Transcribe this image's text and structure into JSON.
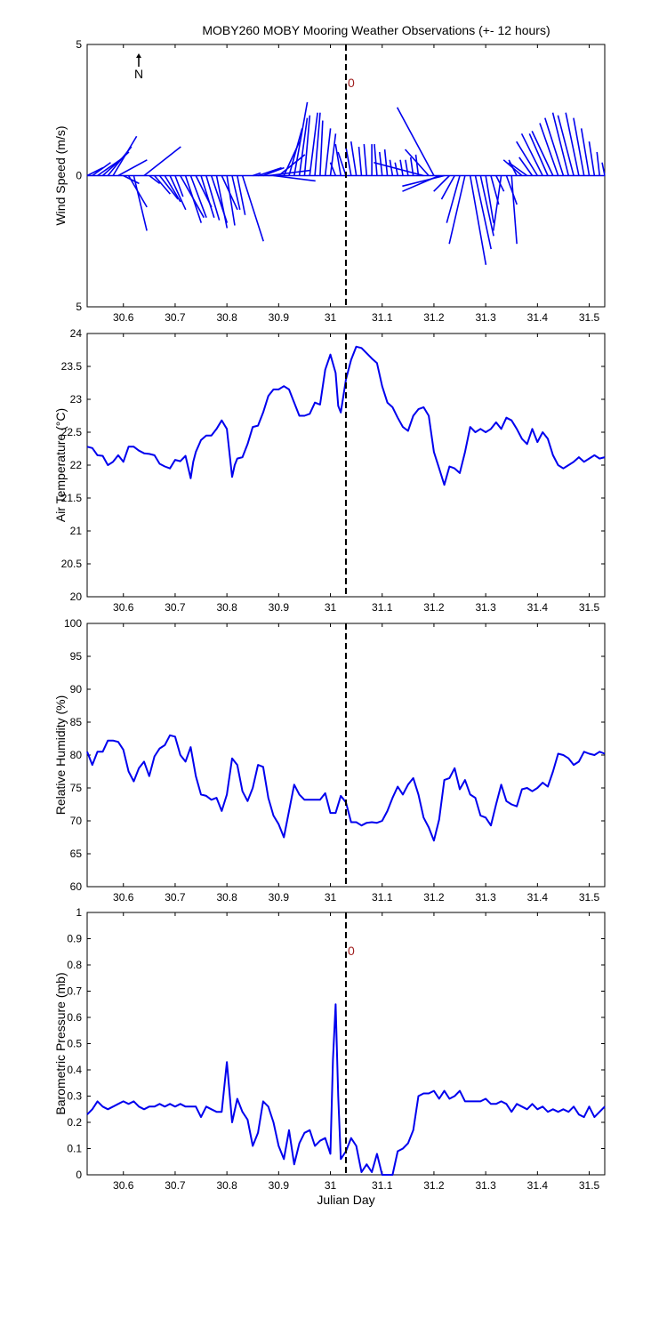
{
  "chart_data": [
    {
      "type": "wind-stick",
      "title": "MOBY260 MOBY Mooring Weather Observations (+- 12 hours)",
      "ylabel": "Wind Speed (m/s)",
      "xlabel": "",
      "north_label": "N",
      "marker_label": "0",
      "xlim": [
        30.53,
        31.53
      ],
      "ylim": [
        -5,
        5
      ],
      "xticks": [
        "30.6",
        "30.7",
        "30.8",
        "30.9",
        "31",
        "31.1",
        "31.2",
        "31.3",
        "31.4",
        "31.5"
      ],
      "yticks": [
        "5",
        "0",
        "5"
      ],
      "now_line_x": 31.03,
      "color": "#0000ee",
      "sticks": [
        {
          "x": 30.53,
          "u": 0.6,
          "v": 0.3
        },
        {
          "x": 30.54,
          "u": 0.7,
          "v": 0.5
        },
        {
          "x": 30.55,
          "u": 1.0,
          "v": 0.7
        },
        {
          "x": 30.56,
          "u": 1.0,
          "v": 0.9
        },
        {
          "x": 30.57,
          "u": 0.9,
          "v": 1.1
        },
        {
          "x": 30.58,
          "u": 0.9,
          "v": 1.5
        },
        {
          "x": 30.59,
          "u": 1.1,
          "v": 0.6
        },
        {
          "x": 30.6,
          "u": 0.6,
          "v": -0.3
        },
        {
          "x": 30.61,
          "u": 0.7,
          "v": -1.2
        },
        {
          "x": 30.62,
          "u": 0.5,
          "v": -2.1
        },
        {
          "x": 30.64,
          "u": 1.4,
          "v": 1.1
        },
        {
          "x": 30.65,
          "u": 0.4,
          "v": -0.3
        },
        {
          "x": 30.66,
          "u": 0.6,
          "v": -0.7
        },
        {
          "x": 30.67,
          "u": 0.7,
          "v": -0.9
        },
        {
          "x": 30.68,
          "u": 0.6,
          "v": -1.0
        },
        {
          "x": 30.69,
          "u": 0.6,
          "v": -1.3
        },
        {
          "x": 30.7,
          "u": 0.3,
          "v": -0.8
        },
        {
          "x": 30.71,
          "u": 0.9,
          "v": -1.6
        },
        {
          "x": 30.72,
          "u": 0.6,
          "v": -1.8
        },
        {
          "x": 30.73,
          "u": 0.6,
          "v": -1.6
        },
        {
          "x": 30.74,
          "u": 0.6,
          "v": -1.2
        },
        {
          "x": 30.75,
          "u": 0.5,
          "v": -1.6
        },
        {
          "x": 30.76,
          "u": 0.5,
          "v": -1.7
        },
        {
          "x": 30.77,
          "u": 0.6,
          "v": -1.8
        },
        {
          "x": 30.78,
          "u": 0.4,
          "v": -2.0
        },
        {
          "x": 30.79,
          "u": 0.6,
          "v": -1.3
        },
        {
          "x": 30.8,
          "u": 0.3,
          "v": -1.9
        },
        {
          "x": 30.81,
          "u": 0.3,
          "v": -1.3
        },
        {
          "x": 30.82,
          "u": 0.3,
          "v": -1.5
        },
        {
          "x": 30.83,
          "u": 0.8,
          "v": -2.5
        },
        {
          "x": 30.85,
          "u": 0.3,
          "v": 0.1
        },
        {
          "x": 30.86,
          "u": 0.9,
          "v": 0.3
        },
        {
          "x": 30.87,
          "u": 0.8,
          "v": 0.3
        },
        {
          "x": 30.88,
          "u": 1.6,
          "v": 0.2
        },
        {
          "x": 30.89,
          "u": 1.6,
          "v": -0.2
        },
        {
          "x": 30.9,
          "u": 1.0,
          "v": 0.8
        },
        {
          "x": 30.91,
          "u": 0.6,
          "v": 1.3
        },
        {
          "x": 30.92,
          "u": 0.5,
          "v": 1.8
        },
        {
          "x": 30.93,
          "u": 0.5,
          "v": 2.8
        },
        {
          "x": 30.94,
          "u": 0.3,
          "v": 2.2
        },
        {
          "x": 30.95,
          "u": 0.2,
          "v": 2.3
        },
        {
          "x": 30.96,
          "u": 0.3,
          "v": 2.4
        },
        {
          "x": 30.97,
          "u": 0.2,
          "v": 2.4
        },
        {
          "x": 30.98,
          "u": 0.1,
          "v": 2.1
        },
        {
          "x": 30.99,
          "u": 0.2,
          "v": 1.8
        },
        {
          "x": 31.0,
          "u": 0.2,
          "v": 1.6
        },
        {
          "x": 31.01,
          "u": -0.2,
          "v": 0.5
        },
        {
          "x": 31.02,
          "u": -0.2,
          "v": 1.2
        },
        {
          "x": 31.03,
          "u": -0.3,
          "v": 0.9
        },
        {
          "x": 31.04,
          "u": -0.2,
          "v": 1.1
        },
        {
          "x": 31.05,
          "u": -0.2,
          "v": 1.3
        },
        {
          "x": 31.06,
          "u": -0.1,
          "v": 1.1
        },
        {
          "x": 31.07,
          "u": -0.1,
          "v": 1.2
        },
        {
          "x": 31.08,
          "u": 0.0,
          "v": 1.2
        },
        {
          "x": 31.09,
          "u": -0.1,
          "v": 1.2
        },
        {
          "x": 31.1,
          "u": -0.1,
          "v": 0.9
        },
        {
          "x": 31.11,
          "u": -0.1,
          "v": 1.0
        },
        {
          "x": 31.12,
          "u": -0.1,
          "v": 0.6
        },
        {
          "x": 31.13,
          "u": -0.1,
          "v": 0.5
        },
        {
          "x": 31.14,
          "u": -0.1,
          "v": 0.6
        },
        {
          "x": 31.15,
          "u": -0.1,
          "v": 0.6
        },
        {
          "x": 31.16,
          "u": -0.1,
          "v": 0.7
        },
        {
          "x": 31.17,
          "u": -0.1,
          "v": 0.8
        },
        {
          "x": 31.18,
          "u": -1.9,
          "v": 0.5
        },
        {
          "x": 31.19,
          "u": -0.9,
          "v": 1.0
        },
        {
          "x": 31.2,
          "u": -1.4,
          "v": 2.6
        },
        {
          "x": 31.21,
          "u": -1.4,
          "v": -0.6
        },
        {
          "x": 31.22,
          "u": -1.6,
          "v": -0.4
        },
        {
          "x": 31.23,
          "u": -0.6,
          "v": -0.6
        },
        {
          "x": 31.24,
          "u": -0.5,
          "v": -0.9
        },
        {
          "x": 31.25,
          "u": -0.5,
          "v": -1.8
        },
        {
          "x": 31.26,
          "u": -0.6,
          "v": -2.6
        },
        {
          "x": 31.27,
          "u": 0.6,
          "v": -3.4
        },
        {
          "x": 31.28,
          "u": 0.6,
          "v": -2.8
        },
        {
          "x": 31.29,
          "u": 0.5,
          "v": -2.3
        },
        {
          "x": 31.3,
          "u": 0.3,
          "v": -1.8
        },
        {
          "x": 31.31,
          "u": 0.3,
          "v": -1.1
        },
        {
          "x": 31.32,
          "u": 0.3,
          "v": -0.6
        },
        {
          "x": 31.33,
          "u": -0.3,
          "v": -2.1
        },
        {
          "x": 31.34,
          "u": 0.4,
          "v": -1.1
        },
        {
          "x": 31.35,
          "u": 0.2,
          "v": -2.6
        },
        {
          "x": 31.36,
          "u": -0.3,
          "v": 0.6
        },
        {
          "x": 31.37,
          "u": -0.7,
          "v": 0.6
        },
        {
          "x": 31.38,
          "u": -0.7,
          "v": 0.5
        },
        {
          "x": 31.39,
          "u": -0.5,
          "v": 0.7
        },
        {
          "x": 31.4,
          "u": -0.8,
          "v": 1.3
        },
        {
          "x": 31.41,
          "u": -0.8,
          "v": 1.6
        },
        {
          "x": 31.42,
          "u": -0.7,
          "v": 1.6
        },
        {
          "x": 31.43,
          "u": -0.8,
          "v": 1.7
        },
        {
          "x": 31.44,
          "u": -0.7,
          "v": 2.0
        },
        {
          "x": 31.45,
          "u": -0.7,
          "v": 2.2
        },
        {
          "x": 31.46,
          "u": -0.6,
          "v": 2.4
        },
        {
          "x": 31.47,
          "u": -0.6,
          "v": 2.3
        },
        {
          "x": 31.48,
          "u": -0.5,
          "v": 2.4
        },
        {
          "x": 31.49,
          "u": -0.4,
          "v": 2.2
        },
        {
          "x": 31.5,
          "u": -0.3,
          "v": 1.8
        },
        {
          "x": 31.51,
          "u": -0.2,
          "v": 1.3
        },
        {
          "x": 31.52,
          "u": -0.1,
          "v": 0.9
        },
        {
          "x": 31.53,
          "u": -0.1,
          "v": 0.5
        }
      ]
    },
    {
      "type": "line",
      "ylabel": "Air Temperature (°C)",
      "xlabel": "",
      "xlim": [
        30.53,
        31.53
      ],
      "ylim": [
        20,
        24
      ],
      "xticks": [
        "30.6",
        "30.7",
        "30.8",
        "30.9",
        "31",
        "31.1",
        "31.2",
        "31.3",
        "31.4",
        "31.5"
      ],
      "yticks": [
        "20",
        "20.5",
        "21",
        "21.5",
        "22",
        "22.5",
        "23",
        "23.5",
        "24"
      ],
      "now_line_x": 31.03,
      "color": "#0000ee",
      "x": [
        30.53,
        30.54,
        30.55,
        30.56,
        30.57,
        30.58,
        30.59,
        30.6,
        30.61,
        30.62,
        30.63,
        30.64,
        30.65,
        30.66,
        30.67,
        30.68,
        30.69,
        30.7,
        30.71,
        30.72,
        30.73,
        30.735,
        30.74,
        30.75,
        30.76,
        30.77,
        30.78,
        30.79,
        30.8,
        30.81,
        30.815,
        30.82,
        30.83,
        30.84,
        30.85,
        30.86,
        30.87,
        30.88,
        30.89,
        30.9,
        30.91,
        30.92,
        30.93,
        30.94,
        30.95,
        30.96,
        30.97,
        30.98,
        30.99,
        31.0,
        31.01,
        31.015,
        31.02,
        31.03,
        31.04,
        31.05,
        31.06,
        31.07,
        31.08,
        31.09,
        31.1,
        31.11,
        31.12,
        31.13,
        31.14,
        31.15,
        31.16,
        31.17,
        31.18,
        31.19,
        31.2,
        31.21,
        31.22,
        31.23,
        31.24,
        31.25,
        31.26,
        31.27,
        31.28,
        31.29,
        31.3,
        31.31,
        31.32,
        31.33,
        31.34,
        31.35,
        31.36,
        31.37,
        31.38,
        31.39,
        31.4,
        31.41,
        31.42,
        31.43,
        31.44,
        31.45,
        31.46,
        31.47,
        31.48,
        31.49,
        31.5,
        31.51,
        31.52,
        31.53
      ],
      "y": [
        22.28,
        22.26,
        22.15,
        22.14,
        22.0,
        22.05,
        22.15,
        22.05,
        22.28,
        22.28,
        22.22,
        22.18,
        22.17,
        22.15,
        22.02,
        21.98,
        21.95,
        22.08,
        22.06,
        22.14,
        21.8,
        22.05,
        22.2,
        22.38,
        22.45,
        22.45,
        22.55,
        22.68,
        22.55,
        21.82,
        22.0,
        22.1,
        22.12,
        22.32,
        22.58,
        22.6,
        22.8,
        23.05,
        23.15,
        23.15,
        23.2,
        23.15,
        22.95,
        22.75,
        22.75,
        22.78,
        22.95,
        22.92,
        23.45,
        23.68,
        23.4,
        22.9,
        22.8,
        23.3,
        23.6,
        23.8,
        23.78,
        23.7,
        23.62,
        23.55,
        23.2,
        22.95,
        22.88,
        22.72,
        22.58,
        22.52,
        22.75,
        22.85,
        22.88,
        22.75,
        22.2,
        21.95,
        21.7,
        21.98,
        21.95,
        21.88,
        22.2,
        22.58,
        22.5,
        22.55,
        22.5,
        22.55,
        22.65,
        22.55,
        22.72,
        22.68,
        22.55,
        22.4,
        22.32,
        22.55,
        22.35,
        22.5,
        22.4,
        22.15,
        22.0,
        21.95,
        22.0,
        22.05,
        22.12,
        22.05,
        22.1,
        22.15,
        22.1,
        22.12
      ]
    },
    {
      "type": "line",
      "ylabel": "Relative Humidity (%)",
      "xlabel": "",
      "xlim": [
        30.53,
        31.53
      ],
      "ylim": [
        60,
        100
      ],
      "xticks": [
        "30.6",
        "30.7",
        "30.8",
        "30.9",
        "31",
        "31.1",
        "31.2",
        "31.3",
        "31.4",
        "31.5"
      ],
      "yticks": [
        "60",
        "65",
        "70",
        "75",
        "80",
        "85",
        "90",
        "95",
        "100"
      ],
      "now_line_x": 31.03,
      "color": "#0000ee",
      "x": [
        30.53,
        30.54,
        30.55,
        30.56,
        30.57,
        30.58,
        30.59,
        30.6,
        30.61,
        30.62,
        30.63,
        30.64,
        30.65,
        30.66,
        30.67,
        30.68,
        30.69,
        30.7,
        30.71,
        30.72,
        30.73,
        30.74,
        30.75,
        30.76,
        30.77,
        30.78,
        30.79,
        30.8,
        30.81,
        30.82,
        30.83,
        30.84,
        30.85,
        30.86,
        30.87,
        30.88,
        30.89,
        30.9,
        30.91,
        30.92,
        30.93,
        30.94,
        30.95,
        30.96,
        30.97,
        30.98,
        30.99,
        31.0,
        31.01,
        31.02,
        31.03,
        31.04,
        31.05,
        31.06,
        31.07,
        31.08,
        31.09,
        31.1,
        31.11,
        31.12,
        31.13,
        31.14,
        31.15,
        31.16,
        31.17,
        31.18,
        31.19,
        31.2,
        31.21,
        31.22,
        31.23,
        31.24,
        31.25,
        31.26,
        31.27,
        31.28,
        31.29,
        31.3,
        31.31,
        31.32,
        31.33,
        31.34,
        31.35,
        31.36,
        31.37,
        31.38,
        31.39,
        31.4,
        31.41,
        31.42,
        31.43,
        31.44,
        31.45,
        31.46,
        31.47,
        31.48,
        31.49,
        31.5,
        31.51,
        31.52,
        31.53
      ],
      "y": [
        80.5,
        78.5,
        80.5,
        80.5,
        82.2,
        82.2,
        82.0,
        80.8,
        77.5,
        76.0,
        78.0,
        79.0,
        76.8,
        79.8,
        81.0,
        81.5,
        83.0,
        82.8,
        80.0,
        79.0,
        81.2,
        76.8,
        74.0,
        73.8,
        73.2,
        73.5,
        71.5,
        74.0,
        79.5,
        78.5,
        74.5,
        73.0,
        75.0,
        78.5,
        78.2,
        73.5,
        70.8,
        69.5,
        67.5,
        71.5,
        75.5,
        74.0,
        73.2,
        73.2,
        73.2,
        73.2,
        74.2,
        71.2,
        71.2,
        73.8,
        72.8,
        69.8,
        69.8,
        69.3,
        69.7,
        69.8,
        69.7,
        70.0,
        71.5,
        73.5,
        75.2,
        74.0,
        75.5,
        76.5,
        74.0,
        70.5,
        69.0,
        67.0,
        70.2,
        76.2,
        76.5,
        78.0,
        74.8,
        76.2,
        74.0,
        73.5,
        70.8,
        70.5,
        69.3,
        72.5,
        75.5,
        73.0,
        72.5,
        72.2,
        74.8,
        75.0,
        74.5,
        75.0,
        75.8,
        75.2,
        77.5,
        80.2,
        80.0,
        79.5,
        78.5,
        79.0,
        80.5,
        80.2,
        80.0,
        80.5,
        80.2
      ]
    },
    {
      "type": "line",
      "ylabel": "Barometric Pressure (mb)",
      "xlabel": "Julian Day",
      "marker_label": "0",
      "xlim": [
        30.53,
        31.53
      ],
      "ylim": [
        0,
        1
      ],
      "xticks": [
        "30.6",
        "30.7",
        "30.8",
        "30.9",
        "31",
        "31.1",
        "31.2",
        "31.3",
        "31.4",
        "31.5"
      ],
      "yticks": [
        "0",
        "0.1",
        "0.2",
        "0.3",
        "0.4",
        "0.5",
        "0.6",
        "0.7",
        "0.8",
        "0.9",
        "1"
      ],
      "now_line_x": 31.03,
      "color": "#0000ee",
      "x": [
        30.53,
        30.54,
        30.55,
        30.56,
        30.57,
        30.58,
        30.59,
        30.6,
        30.61,
        30.62,
        30.63,
        30.64,
        30.65,
        30.66,
        30.67,
        30.68,
        30.69,
        30.7,
        30.71,
        30.72,
        30.73,
        30.74,
        30.75,
        30.76,
        30.77,
        30.78,
        30.79,
        30.8,
        30.81,
        30.82,
        30.83,
        30.84,
        30.85,
        30.86,
        30.87,
        30.88,
        30.89,
        30.9,
        30.91,
        30.92,
        30.93,
        30.94,
        30.95,
        30.96,
        30.97,
        30.98,
        30.99,
        31.0,
        31.005,
        31.01,
        31.015,
        31.02,
        31.03,
        31.04,
        31.05,
        31.06,
        31.07,
        31.08,
        31.09,
        31.1,
        31.11,
        31.12,
        31.13,
        31.14,
        31.15,
        31.16,
        31.17,
        31.18,
        31.19,
        31.2,
        31.21,
        31.22,
        31.23,
        31.24,
        31.25,
        31.26,
        31.27,
        31.28,
        31.29,
        31.3,
        31.31,
        31.32,
        31.33,
        31.34,
        31.35,
        31.36,
        31.37,
        31.38,
        31.39,
        31.4,
        31.41,
        31.42,
        31.43,
        31.44,
        31.45,
        31.46,
        31.47,
        31.48,
        31.49,
        31.5,
        31.51,
        31.52,
        31.53
      ],
      "y": [
        0.23,
        0.25,
        0.28,
        0.26,
        0.25,
        0.26,
        0.27,
        0.28,
        0.27,
        0.28,
        0.26,
        0.25,
        0.26,
        0.26,
        0.27,
        0.26,
        0.27,
        0.26,
        0.27,
        0.26,
        0.26,
        0.26,
        0.22,
        0.26,
        0.25,
        0.24,
        0.24,
        0.43,
        0.2,
        0.29,
        0.24,
        0.21,
        0.11,
        0.16,
        0.28,
        0.26,
        0.2,
        0.11,
        0.06,
        0.17,
        0.04,
        0.12,
        0.16,
        0.17,
        0.11,
        0.13,
        0.14,
        0.08,
        0.44,
        0.65,
        0.3,
        0.06,
        0.09,
        0.14,
        0.11,
        0.01,
        0.04,
        0.01,
        0.08,
        0.0,
        0.0,
        0.0,
        0.09,
        0.1,
        0.12,
        0.17,
        0.3,
        0.31,
        0.31,
        0.32,
        0.29,
        0.32,
        0.29,
        0.3,
        0.32,
        0.28,
        0.28,
        0.28,
        0.28,
        0.29,
        0.27,
        0.27,
        0.28,
        0.27,
        0.24,
        0.27,
        0.26,
        0.25,
        0.27,
        0.25,
        0.26,
        0.24,
        0.25,
        0.24,
        0.25,
        0.24,
        0.26,
        0.23,
        0.22,
        0.26,
        0.22,
        0.24,
        0.26
      ]
    }
  ]
}
